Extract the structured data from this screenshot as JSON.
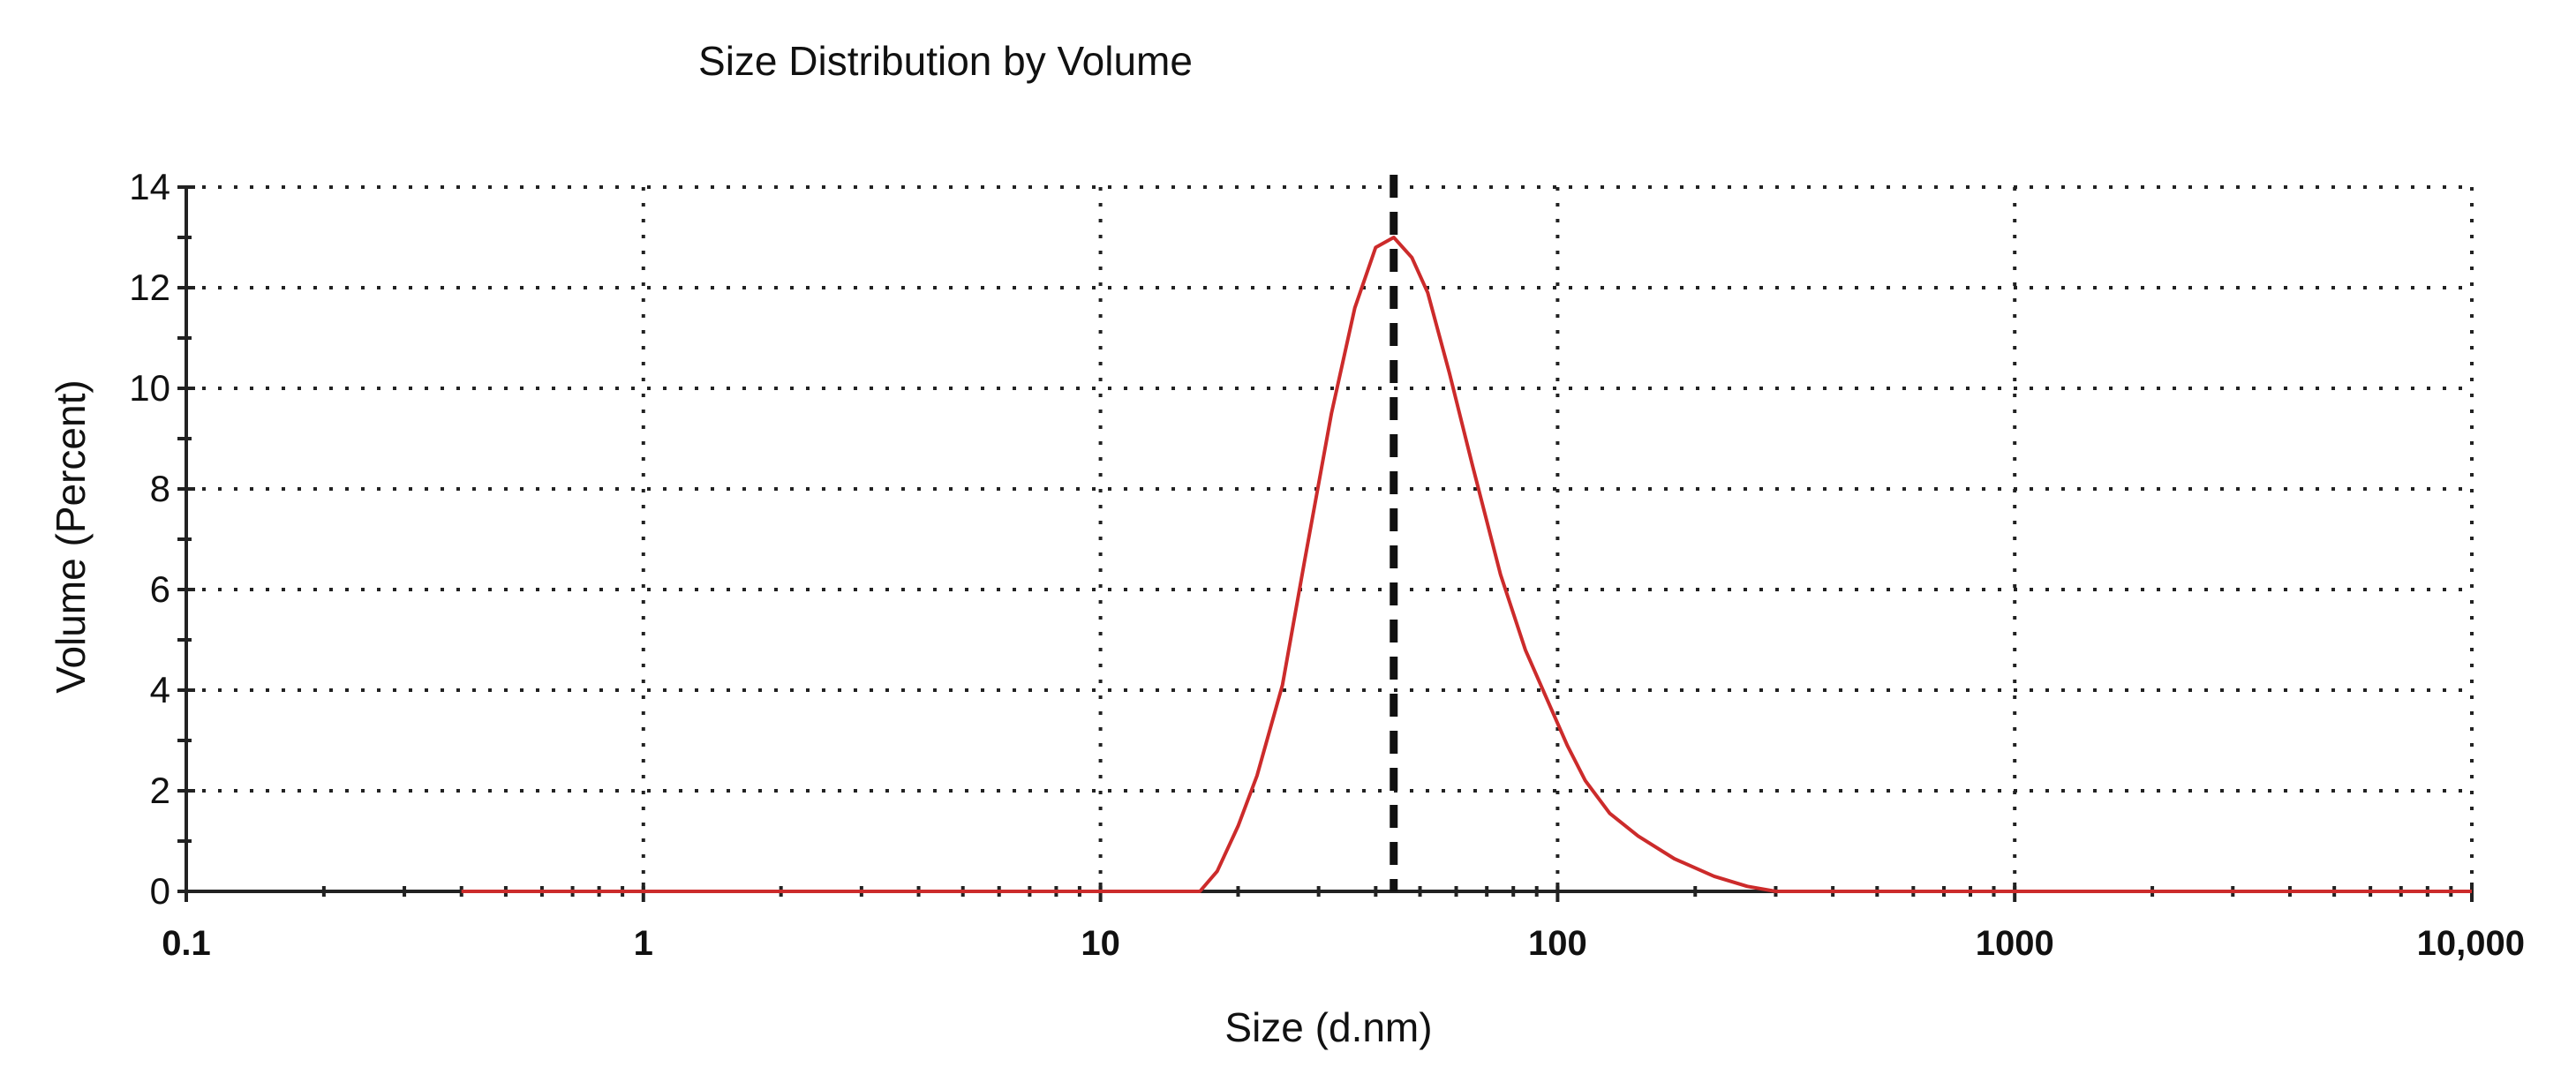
{
  "chart_data": {
    "type": "line",
    "title": "Size Distribution by Volume",
    "xlabel": "Size (d.nm)",
    "ylabel": "Volume (Percent)",
    "xscale": "log",
    "xlim": [
      0.1,
      10000
    ],
    "ylim": [
      0,
      14
    ],
    "xticks": [
      {
        "value": 0.1,
        "label": "0.1"
      },
      {
        "value": 1,
        "label": "1"
      },
      {
        "value": 10,
        "label": "10"
      },
      {
        "value": 100,
        "label": "100"
      },
      {
        "value": 1000,
        "label": "1000"
      },
      {
        "value": 10000,
        "label": "10,000"
      }
    ],
    "yticks": [
      {
        "value": 0,
        "label": "0"
      },
      {
        "value": 2,
        "label": "2"
      },
      {
        "value": 4,
        "label": "4"
      },
      {
        "value": 6,
        "label": "6"
      },
      {
        "value": 8,
        "label": "8"
      },
      {
        "value": 10,
        "label": "10"
      },
      {
        "value": 12,
        "label": "12"
      },
      {
        "value": 14,
        "label": "14"
      }
    ],
    "grid": true,
    "series": [
      {
        "color": "#cc2b2b",
        "x": [
          0.4,
          1,
          5,
          10,
          16.5,
          18,
          20,
          22,
          25,
          28,
          32,
          36,
          40,
          43.8,
          48,
          52,
          58,
          65,
          75,
          85,
          95,
          105,
          115,
          130,
          150,
          180,
          220,
          260,
          300,
          350,
          500,
          1000,
          10000
        ],
        "y": [
          0,
          0,
          0,
          0,
          0,
          0.4,
          1.3,
          2.3,
          4.1,
          6.6,
          9.5,
          11.6,
          12.8,
          13.0,
          12.6,
          11.9,
          10.3,
          8.5,
          6.3,
          4.8,
          3.8,
          2.9,
          2.2,
          1.55,
          1.1,
          0.65,
          0.3,
          0.1,
          0,
          0,
          0,
          0,
          0
        ]
      }
    ],
    "annotations": [
      {
        "type": "vline",
        "x": 43.8,
        "style": "dashed",
        "color": "#111111"
      }
    ]
  }
}
